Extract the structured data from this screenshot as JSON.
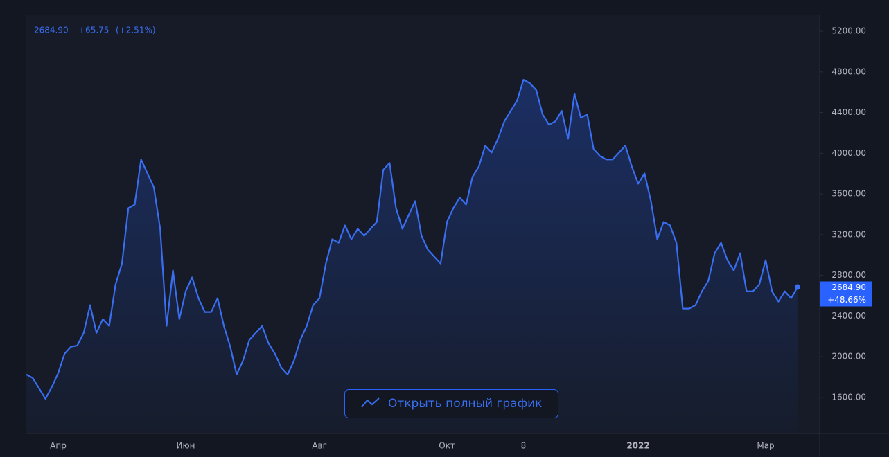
{
  "chart_data": {
    "type": "line",
    "header": {
      "price": "2684.90",
      "change": "+65.75",
      "change_pct": "(+2.51%)"
    },
    "price_tag": {
      "price": "2684.90",
      "change_pct": "+48.66%"
    },
    "button": "Открыть полный график",
    "color": "#3a6ef0",
    "categories": [
      null,
      null,
      null,
      null,
      null,
      "Апр",
      null,
      null,
      null,
      null,
      null,
      null,
      null,
      null,
      null,
      null,
      null,
      null,
      null,
      null,
      null,
      null,
      null,
      null,
      null,
      "Июн",
      null,
      null,
      null,
      null,
      null,
      null,
      null,
      null,
      null,
      null,
      null,
      null,
      null,
      null,
      null,
      null,
      null,
      null,
      null,
      null,
      "Авг",
      null,
      null,
      null,
      null,
      null,
      null,
      null,
      null,
      null,
      null,
      null,
      null,
      null,
      null,
      null,
      null,
      null,
      null,
      null,
      "Окт",
      null,
      null,
      null,
      null,
      null,
      null,
      null,
      null,
      null,
      null,
      null,
      "8",
      null,
      null,
      null,
      null,
      null,
      null,
      null,
      null,
      null,
      null,
      null,
      null,
      null,
      null,
      null,
      null,
      null,
      "2022",
      null,
      null,
      null,
      null,
      null,
      null,
      null,
      null,
      null,
      null,
      null,
      null,
      null,
      null,
      null,
      null,
      null,
      null,
      null,
      "Мар",
      null,
      null,
      null,
      null,
      null
    ],
    "values": [
      1825,
      1791,
      1689,
      1586,
      1702,
      1839,
      2030,
      2098,
      2110,
      2234,
      2507,
      2234,
      2370,
      2302,
      2711,
      2916,
      3461,
      3495,
      3939,
      3802,
      3666,
      3257,
      2302,
      2848,
      2370,
      2643,
      2780,
      2575,
      2439,
      2439,
      2575,
      2302,
      2098,
      1825,
      1961,
      2166,
      2234,
      2302,
      2132,
      2030,
      1893,
      1825,
      1961,
      2166,
      2302,
      2507,
      2575,
      2916,
      3155,
      3120,
      3291,
      3155,
      3257,
      3189,
      3257,
      3325,
      3836,
      3904,
      3461,
      3257,
      3393,
      3529,
      3189,
      3052,
      2984,
      2916,
      3325,
      3461,
      3564,
      3495,
      3768,
      3870,
      4075,
      4007,
      4143,
      4314,
      4416,
      4518,
      4723,
      4689,
      4621,
      4382,
      4280,
      4314,
      4416,
      4143,
      4586,
      4348,
      4382,
      4041,
      3973,
      3939,
      3939,
      4007,
      4075,
      3870,
      3700,
      3802,
      3529,
      3155,
      3325,
      3291,
      3120,
      2473,
      2473,
      2507,
      2643,
      2745,
      3018,
      3120,
      2950,
      2848,
      3018,
      2643,
      2643,
      2711,
      2950,
      2643,
      2541,
      2643,
      2575,
      2684.9
    ],
    "ylim": [
      1245,
      5357
    ],
    "yticks": [
      {
        "value": 1600,
        "label": "1600.00"
      },
      {
        "value": 2000,
        "label": "2000.00"
      },
      {
        "value": 2400,
        "label": "2400.00"
      },
      {
        "value": 2800,
        "label": "2800.00"
      },
      {
        "value": 3200,
        "label": "3200.00"
      },
      {
        "value": 3600,
        "label": "3600.00"
      },
      {
        "value": 4000,
        "label": "4000.00"
      },
      {
        "value": 4400,
        "label": "4400.00"
      },
      {
        "value": 4800,
        "label": "4800.00"
      },
      {
        "value": 5200,
        "label": "5200.00"
      }
    ]
  }
}
